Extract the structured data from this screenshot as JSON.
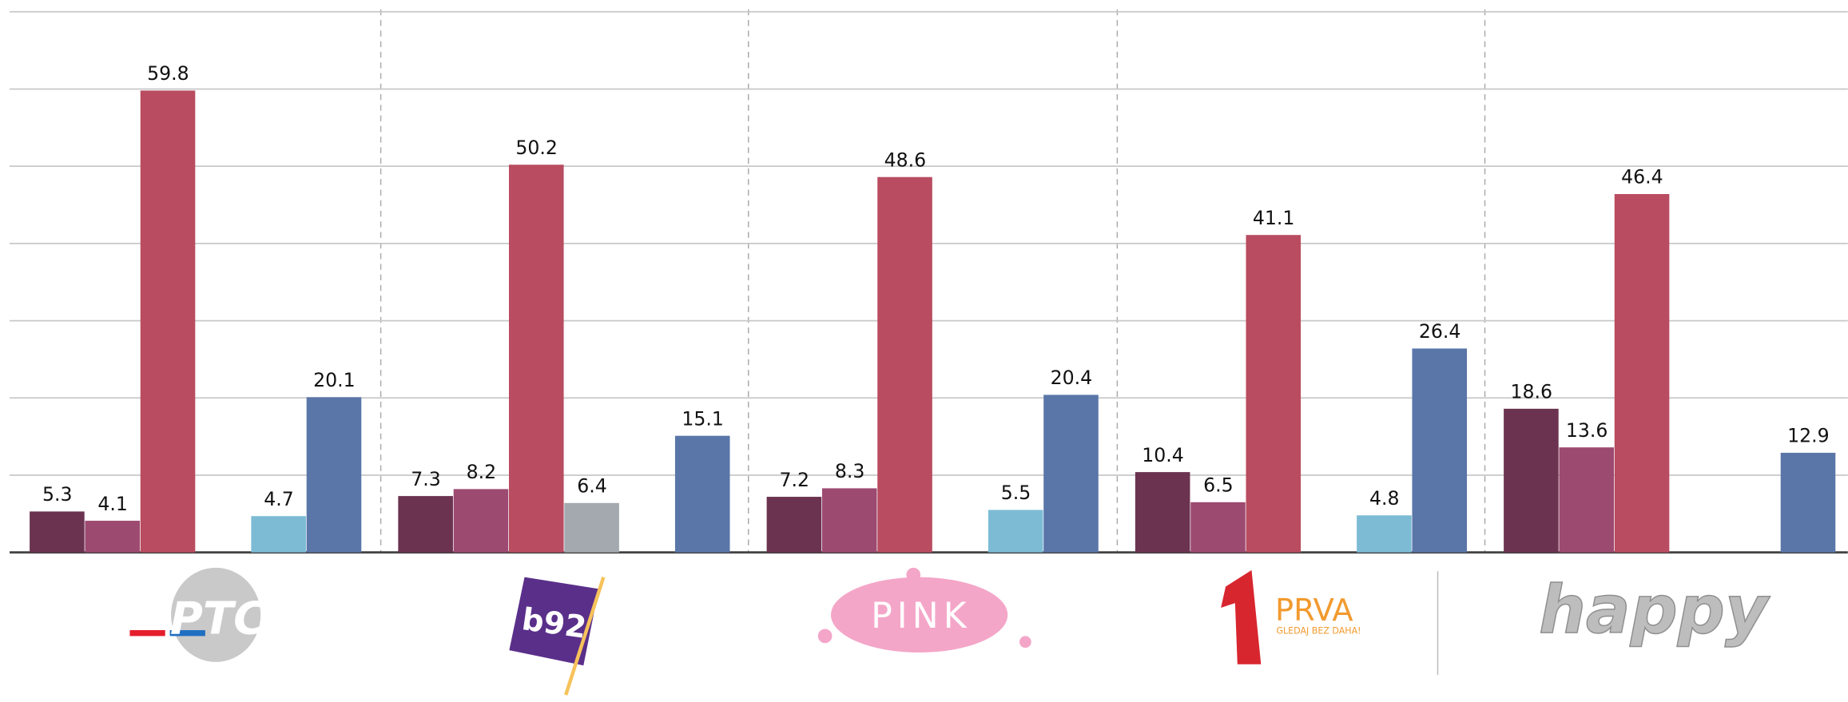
{
  "chart_data": {
    "type": "bar",
    "categories": [
      "РТС",
      "b92",
      "PINK",
      "PRVA",
      "happy"
    ],
    "annotations": [
      "GLEDAJ BEZ DAHA!"
    ],
    "series": [
      {
        "color": "#6b3350",
        "values": [
          5.3,
          7.3,
          7.2,
          10.4,
          18.6
        ]
      },
      {
        "color": "#9d4a71",
        "values": [
          4.1,
          8.2,
          8.3,
          6.5,
          13.6
        ]
      },
      {
        "color": "#b94c60",
        "values": [
          59.8,
          50.2,
          48.6,
          41.1,
          46.4
        ]
      },
      {
        "color": "#a4a9b0",
        "values": [
          null,
          6.4,
          null,
          null,
          null
        ]
      },
      {
        "color": "#7dbbd5",
        "values": [
          4.7,
          null,
          5.5,
          4.8,
          null
        ]
      },
      {
        "color": "#5a76a8",
        "values": [
          20.1,
          15.1,
          20.4,
          26.4,
          12.9
        ]
      }
    ],
    "ylim": [
      0,
      70
    ],
    "yticks": [
      0,
      10,
      20,
      30,
      40,
      50,
      60,
      70
    ],
    "grid": true
  }
}
